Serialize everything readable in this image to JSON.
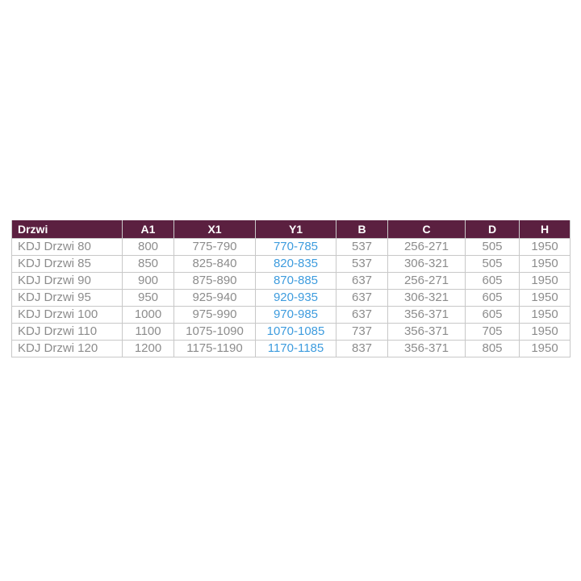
{
  "colors": {
    "header_bg": "#5b2040",
    "header_text": "#ffffff",
    "body_text": "#8c8c8c",
    "highlight_text": "#3e9cde",
    "border": "#c8c8c8",
    "page_bg": "#ffffff"
  },
  "table": {
    "columns": [
      {
        "key": "drzwi",
        "label": "Drzwi",
        "highlight": false
      },
      {
        "key": "a1",
        "label": "A1",
        "highlight": false
      },
      {
        "key": "x1",
        "label": "X1",
        "highlight": false
      },
      {
        "key": "y1",
        "label": "Y1",
        "highlight": true
      },
      {
        "key": "b",
        "label": "B",
        "highlight": false
      },
      {
        "key": "c",
        "label": "C",
        "highlight": false
      },
      {
        "key": "d",
        "label": "D",
        "highlight": false
      },
      {
        "key": "h",
        "label": "H",
        "highlight": false
      }
    ],
    "rows": [
      {
        "drzwi": "KDJ Drzwi 80",
        "a1": "800",
        "x1": "775-790",
        "y1": "770-785",
        "b": "537",
        "c": "256-271",
        "d": "505",
        "h": "1950"
      },
      {
        "drzwi": "KDJ Drzwi 85",
        "a1": "850",
        "x1": "825-840",
        "y1": "820-835",
        "b": "537",
        "c": "306-321",
        "d": "505",
        "h": "1950"
      },
      {
        "drzwi": "KDJ Drzwi 90",
        "a1": "900",
        "x1": "875-890",
        "y1": "870-885",
        "b": "637",
        "c": "256-271",
        "d": "605",
        "h": "1950"
      },
      {
        "drzwi": "KDJ Drzwi 95",
        "a1": "950",
        "x1": "925-940",
        "y1": "920-935",
        "b": "637",
        "c": "306-321",
        "d": "605",
        "h": "1950"
      },
      {
        "drzwi": "KDJ Drzwi 100",
        "a1": "1000",
        "x1": "975-990",
        "y1": "970-985",
        "b": "637",
        "c": "356-371",
        "d": "605",
        "h": "1950"
      },
      {
        "drzwi": "KDJ Drzwi 110",
        "a1": "1100",
        "x1": "1075-1090",
        "y1": "1070-1085",
        "b": "737",
        "c": "356-371",
        "d": "705",
        "h": "1950"
      },
      {
        "drzwi": "KDJ Drzwi 120",
        "a1": "1200",
        "x1": "1175-1190",
        "y1": "1170-1185",
        "b": "837",
        "c": "356-371",
        "d": "805",
        "h": "1950"
      }
    ]
  }
}
